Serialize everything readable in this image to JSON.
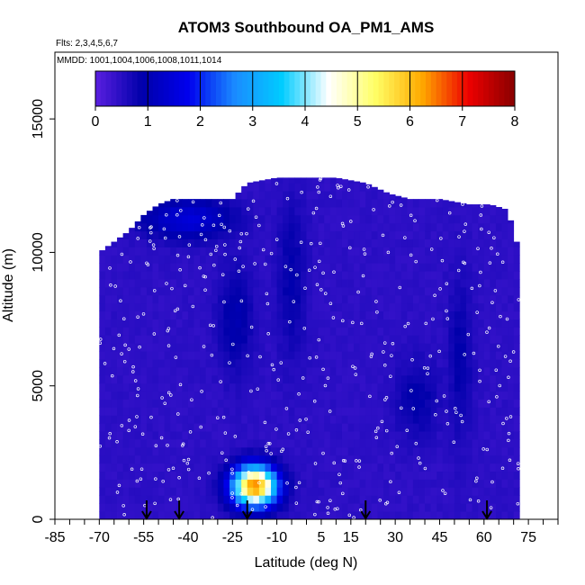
{
  "chart_data": {
    "type": "heatmap",
    "title": "ATOM3 Southbound OA_PM1_AMS",
    "flights_note": "Flts: 2,3,4,5,6,7",
    "mmdd_note": "MMDD: 1001,1004,1006,1008,1011,1014",
    "xlabel": "Latitude (deg N)",
    "ylabel": "Altitude (m)",
    "xlim": [
      -85,
      85
    ],
    "ylim": [
      0,
      17500
    ],
    "x_ticks": [
      -85,
      -70,
      -55,
      -40,
      -25,
      -10,
      5,
      15,
      30,
      45,
      60,
      75
    ],
    "x_tick_labels": [
      "-85",
      "-70",
      "-55",
      "-40",
      "-25",
      "-10",
      "5",
      "15",
      "30",
      "45",
      "60",
      "75"
    ],
    "y_ticks": [
      0,
      5000,
      10000,
      15000
    ],
    "y_tick_labels": [
      "0",
      "5000",
      "10000",
      "15000"
    ],
    "colorbar": {
      "min": 0,
      "max": 8,
      "ticks": [
        "0",
        "1",
        "2",
        "3",
        "4",
        "5",
        "6",
        "7",
        "8"
      ],
      "colors": [
        "#5a1fe0",
        "#0000aa",
        "#0000ee",
        "#1a8cff",
        "#00ccff",
        "#ffffff",
        "#ffff66",
        "#ffaa00",
        "#ee0000",
        "#880000"
      ]
    },
    "sounding_latitudes": [
      -54,
      -43,
      -20,
      20,
      61
    ],
    "data_extent": {
      "lat_range": [
        -70,
        72
      ],
      "alt_top_by_lat": [
        [
          -70,
          10000
        ],
        [
          -65,
          10400
        ],
        [
          -60,
          10800
        ],
        [
          -55,
          11400
        ],
        [
          -50,
          11800
        ],
        [
          -45,
          12000
        ],
        [
          -40,
          12000
        ],
        [
          -30,
          12000
        ],
        [
          -25,
          12000
        ],
        [
          -20,
          12600
        ],
        [
          -10,
          12800
        ],
        [
          0,
          12800
        ],
        [
          10,
          12800
        ],
        [
          20,
          12600
        ],
        [
          28,
          12200
        ],
        [
          35,
          12000
        ],
        [
          45,
          12000
        ],
        [
          55,
          11800
        ],
        [
          62,
          11800
        ],
        [
          68,
          11600
        ],
        [
          72,
          10000
        ]
      ]
    },
    "features": [
      {
        "name": "upper-troposphere-low",
        "lat": [
          -55,
          -25
        ],
        "alt": [
          10500,
          12000
        ],
        "value": 1.5
      },
      {
        "name": "south-hemisphere-column-low",
        "lat": [
          -30,
          -18
        ],
        "alt": [
          5500,
          9500
        ],
        "value": 1.0
      },
      {
        "name": "mid-latitude-column-low",
        "lat": [
          -10,
          0
        ],
        "alt": [
          6000,
          12000
        ],
        "value": 0.9
      },
      {
        "name": "tropical-column-low",
        "lat": [
          30,
          45
        ],
        "alt": [
          3000,
          6000
        ],
        "value": 0.9
      },
      {
        "name": "northern-column-low",
        "lat": [
          48,
          56
        ],
        "alt": [
          3000,
          9000
        ],
        "value": 0.9
      },
      {
        "name": "boundary-layer-plume",
        "lat": [
          -25,
          -10
        ],
        "alt": [
          500,
          2000
        ],
        "value": 6.5
      }
    ]
  }
}
